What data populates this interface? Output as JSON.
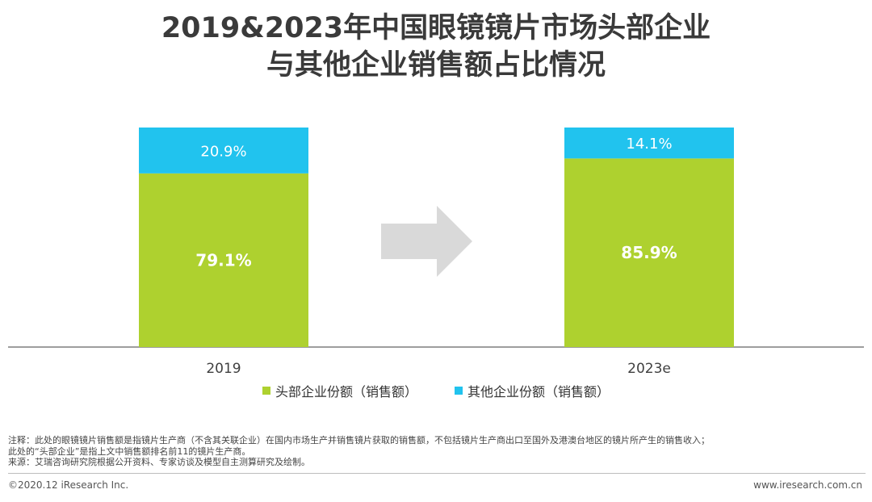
{
  "title": {
    "line1": "2019&2023年中国眼镜镜片市场头部企业",
    "line2": "与其他企业销售额占比情况"
  },
  "chart_data": {
    "type": "bar",
    "stacked": true,
    "percent": true,
    "categories": [
      "2019",
      "2023e"
    ],
    "series": [
      {
        "name": "头部企业份额（销售额）",
        "values": [
          79.1,
          85.9
        ],
        "labels": [
          "79.1%",
          "85.9%"
        ],
        "color": "#aed12f"
      },
      {
        "name": "其他企业份额（销售额）",
        "values": [
          20.9,
          14.1
        ],
        "labels": [
          "20.9%",
          "14.1%"
        ],
        "color": "#21c3ee"
      }
    ],
    "ylim": [
      0,
      100
    ],
    "grid": false,
    "legend_position": "bottom"
  },
  "decor": {
    "arrow_color": "#d9d9d9",
    "axis_color": "#7f7f7f"
  },
  "notes": {
    "line1": "注释：此处的眼镜镜片销售额是指镜片生产商（不含其关联企业）在国内市场生产并销售镜片获取的销售额，不包括镜片生产商出口至国外及港澳台地区的镜片所产生的销售收入；",
    "line2": "此处的“头部企业”是指上文中销售额排名前11的镜片生产商。",
    "line3": "来源：艾瑞咨询研究院根据公开资料、专家访谈及模型自主测算研究及绘制。"
  },
  "footer": {
    "left": "©2020.12 iResearch Inc.",
    "right": "www.iresearch.com.cn"
  }
}
